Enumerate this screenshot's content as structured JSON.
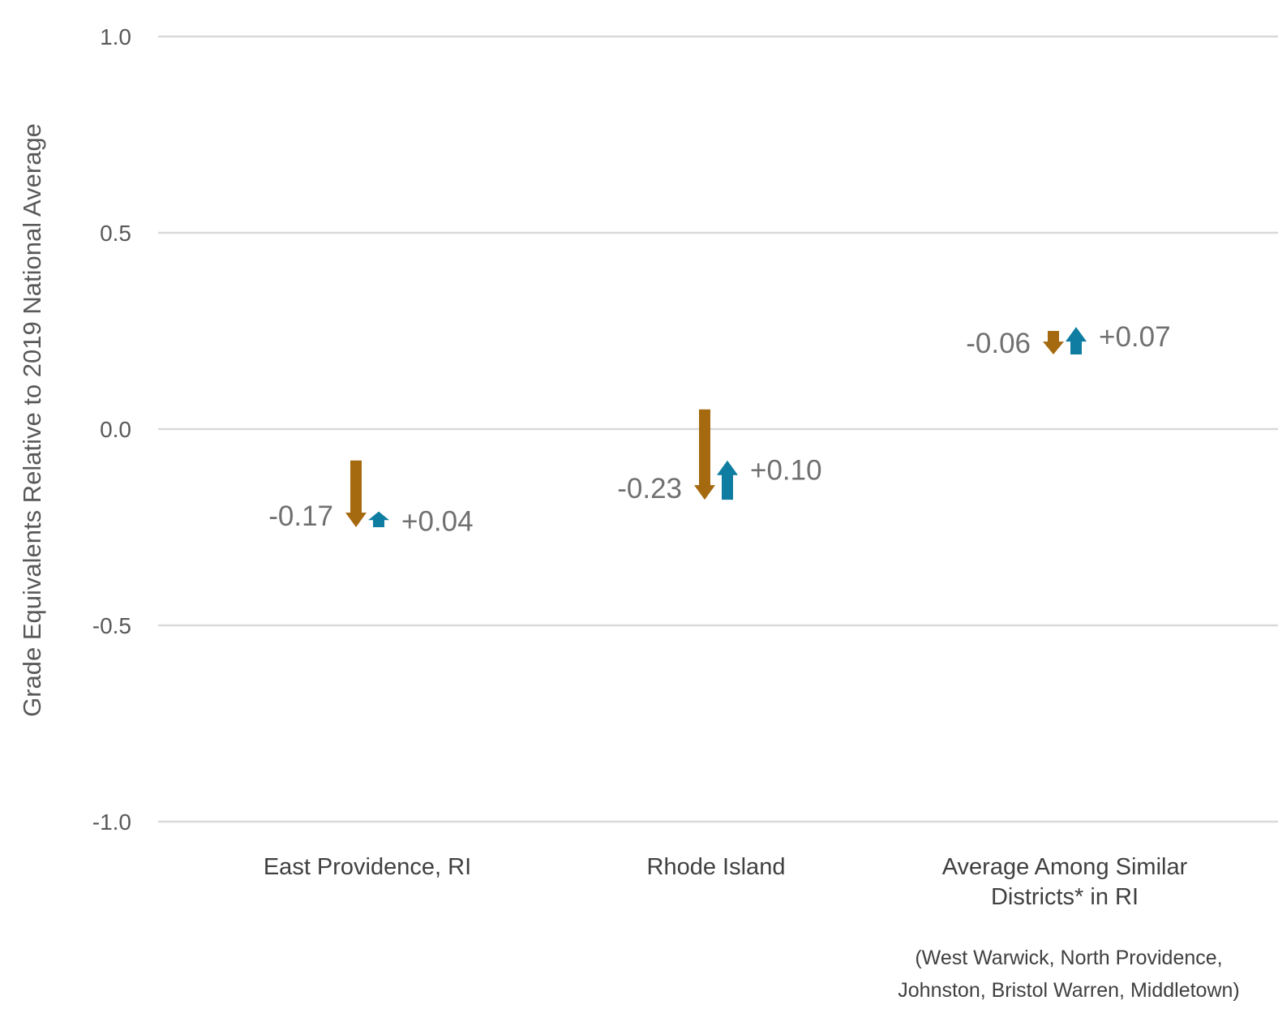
{
  "chart_data": {
    "type": "arrow",
    "ylabel": "Grade Equivalents Relative to 2019 National Average",
    "ylim": [
      -1.0,
      1.0
    ],
    "yticks": [
      {
        "value": 1.0,
        "label": "1.0"
      },
      {
        "value": 0.5,
        "label": "0.5"
      },
      {
        "value": 0.0,
        "label": "0.0"
      },
      {
        "value": -0.5,
        "label": "-0.5"
      },
      {
        "value": -1.0,
        "label": "-1.0"
      }
    ],
    "grid": true,
    "colors": {
      "decline": "#a5690f",
      "gain": "#0f7da1",
      "grid": "#d9d9d9"
    },
    "categories": [
      {
        "label_lines": [
          "East Providence, RI"
        ],
        "decline": {
          "from": -0.08,
          "to": -0.25,
          "label": "-0.17"
        },
        "gain": {
          "from": -0.25,
          "to": -0.21,
          "label": "+0.04"
        }
      },
      {
        "label_lines": [
          "Rhode Island"
        ],
        "decline": {
          "from": 0.05,
          "to": -0.18,
          "label": "-0.23"
        },
        "gain": {
          "from": -0.18,
          "to": -0.08,
          "label": "+0.10"
        }
      },
      {
        "label_lines": [
          "Average Among Similar",
          "Districts* in RI"
        ],
        "decline": {
          "from": 0.25,
          "to": 0.19,
          "label": "-0.06"
        },
        "gain": {
          "from": 0.19,
          "to": 0.26,
          "label": "+0.07"
        }
      }
    ],
    "footnote_lines": [
      "(West Warwick, North Providence,",
      "Johnston, Bristol Warren, Middletown)"
    ]
  }
}
